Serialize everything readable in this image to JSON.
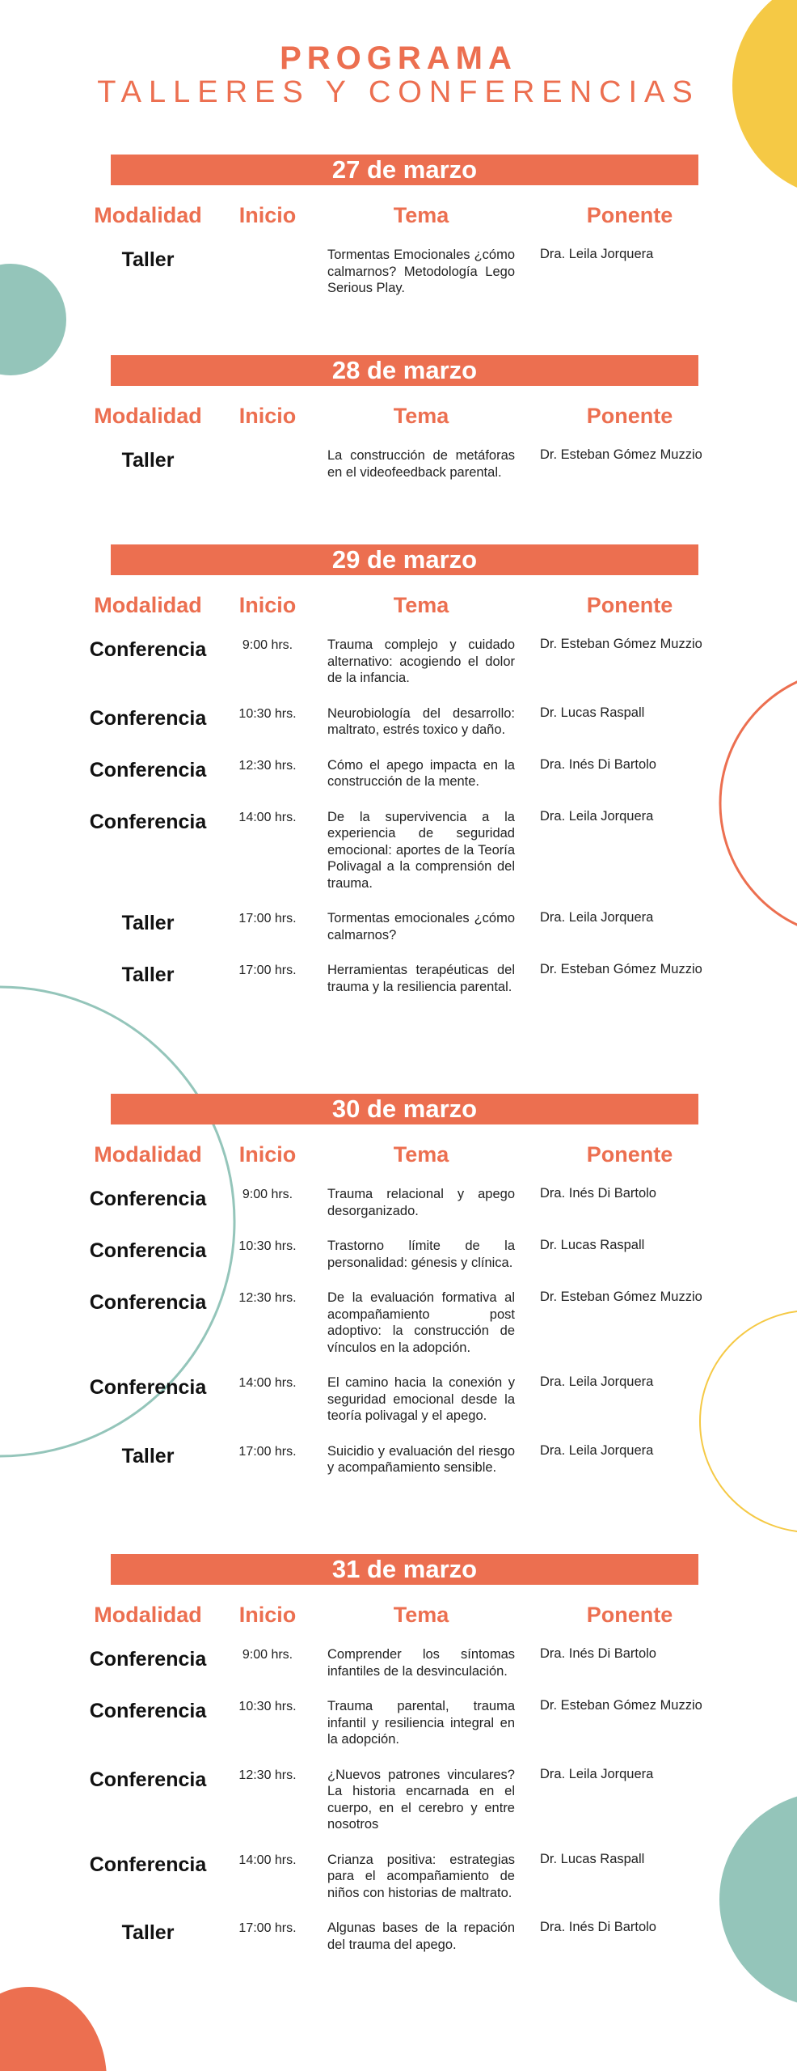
{
  "header": {
    "title": "PROGRAMA",
    "subtitle": "TALLERES Y CONFERENCIAS"
  },
  "colors": {
    "accent": "#EC6F50",
    "yellow": "#F5C945",
    "teal": "#94C5BA"
  },
  "columns": {
    "modalidad": "Modalidad",
    "inicio": "Inicio",
    "tema": "Tema",
    "ponente": "Ponente"
  },
  "days": [
    {
      "date": "27 de marzo",
      "sessions": [
        {
          "modalidad": "Taller",
          "inicio": "",
          "tema": "Tormentas Emocionales ¿cómo calmarnos? Metodología Lego Serious Play.",
          "ponente": "Dra. Leila Jorquera"
        }
      ]
    },
    {
      "date": "28 de marzo",
      "sessions": [
        {
          "modalidad": "Taller",
          "inicio": "",
          "tema": "La construcción de metáforas en el videofeedback parental.",
          "ponente": "Dr. Esteban Gómez Muzzio"
        }
      ]
    },
    {
      "date": "29 de marzo",
      "sessions": [
        {
          "modalidad": "Conferencia",
          "inicio": "9:00 hrs.",
          "tema": "Trauma complejo y cuidado alternativo: acogiendo el dolor de la infancia.",
          "ponente": "Dr. Esteban Gómez Muzzio"
        },
        {
          "modalidad": "Conferencia",
          "inicio": "10:30 hrs.",
          "tema": "Neurobiología del desarrollo: maltrato, estrés toxico y daño.",
          "ponente": "Dr. Lucas Raspall"
        },
        {
          "modalidad": "Conferencia",
          "inicio": "12:30 hrs.",
          "tema": "Cómo el apego impacta en la construcción de la mente.",
          "ponente": "Dra. Inés Di Bartolo"
        },
        {
          "modalidad": "Conferencia",
          "inicio": "14:00 hrs.",
          "tema": "De la supervivencia a la experiencia de seguridad emocional: aportes de la Teoría Polivagal a la comprensión del trauma.",
          "ponente": "Dra. Leila Jorquera"
        },
        {
          "modalidad": "Taller",
          "inicio": "17:00 hrs.",
          "tema": "Tormentas emocionales ¿cómo calmarnos?",
          "ponente": "Dra. Leila Jorquera"
        },
        {
          "modalidad": "Taller",
          "inicio": "17:00 hrs.",
          "tema": "Herramientas terapéuticas del trauma y la resiliencia parental.",
          "ponente": "Dr. Esteban Gómez Muzzio"
        }
      ]
    },
    {
      "date": "30 de marzo",
      "sessions": [
        {
          "modalidad": "Conferencia",
          "inicio": "9:00 hrs.",
          "tema": "Trauma relacional y apego desorganizado.",
          "ponente": "Dra. Inés Di Bartolo"
        },
        {
          "modalidad": "Conferencia",
          "inicio": "10:30 hrs.",
          "tema": "Trastorno límite de la personalidad: génesis y clínica.",
          "ponente": "Dr. Lucas Raspall"
        },
        {
          "modalidad": "Conferencia",
          "inicio": "12:30 hrs.",
          "tema": "De la evaluación formativa al acompañamiento post adoptivo: la construcción de vínculos en la adopción.",
          "ponente": "Dr. Esteban Gómez Muzzio"
        },
        {
          "modalidad": "Conferencia",
          "inicio": "14:00 hrs.",
          "tema": "El camino hacia la conexión y seguridad emocional desde la teoría polivagal y el apego.",
          "ponente": "Dra. Leila Jorquera"
        },
        {
          "modalidad": "Taller",
          "inicio": "17:00 hrs.",
          "tema": "Suicidio y evaluación del riesgo y acompañamiento sensible.",
          "ponente": "Dra. Leila Jorquera"
        }
      ]
    },
    {
      "date": "31 de marzo",
      "sessions": [
        {
          "modalidad": "Conferencia",
          "inicio": "9:00 hrs.",
          "tema": "Comprender los síntomas infantiles de la desvinculación.",
          "ponente": "Dra. Inés Di Bartolo"
        },
        {
          "modalidad": "Conferencia",
          "inicio": "10:30 hrs.",
          "tema": "Trauma parental, trauma infantil y resiliencia integral en la adopción.",
          "ponente": "Dr. Esteban Gómez Muzzio"
        },
        {
          "modalidad": "Conferencia",
          "inicio": "12:30 hrs.",
          "tema": "¿Nuevos patrones vinculares? La historia encarnada en el cuerpo, en el cerebro y entre nosotros",
          "ponente": "Dra. Leila Jorquera"
        },
        {
          "modalidad": "Conferencia",
          "inicio": "14:00 hrs.",
          "tema": "Crianza positiva: estrategias para el acompañamiento de niños con historias de maltrato.",
          "ponente": "Dr. Lucas Raspall"
        },
        {
          "modalidad": "Taller",
          "inicio": "17:00 hrs.",
          "tema": "Algunas bases de la repación del trauma del apego.",
          "ponente": "Dra. Inés Di Bartolo"
        }
      ]
    }
  ]
}
